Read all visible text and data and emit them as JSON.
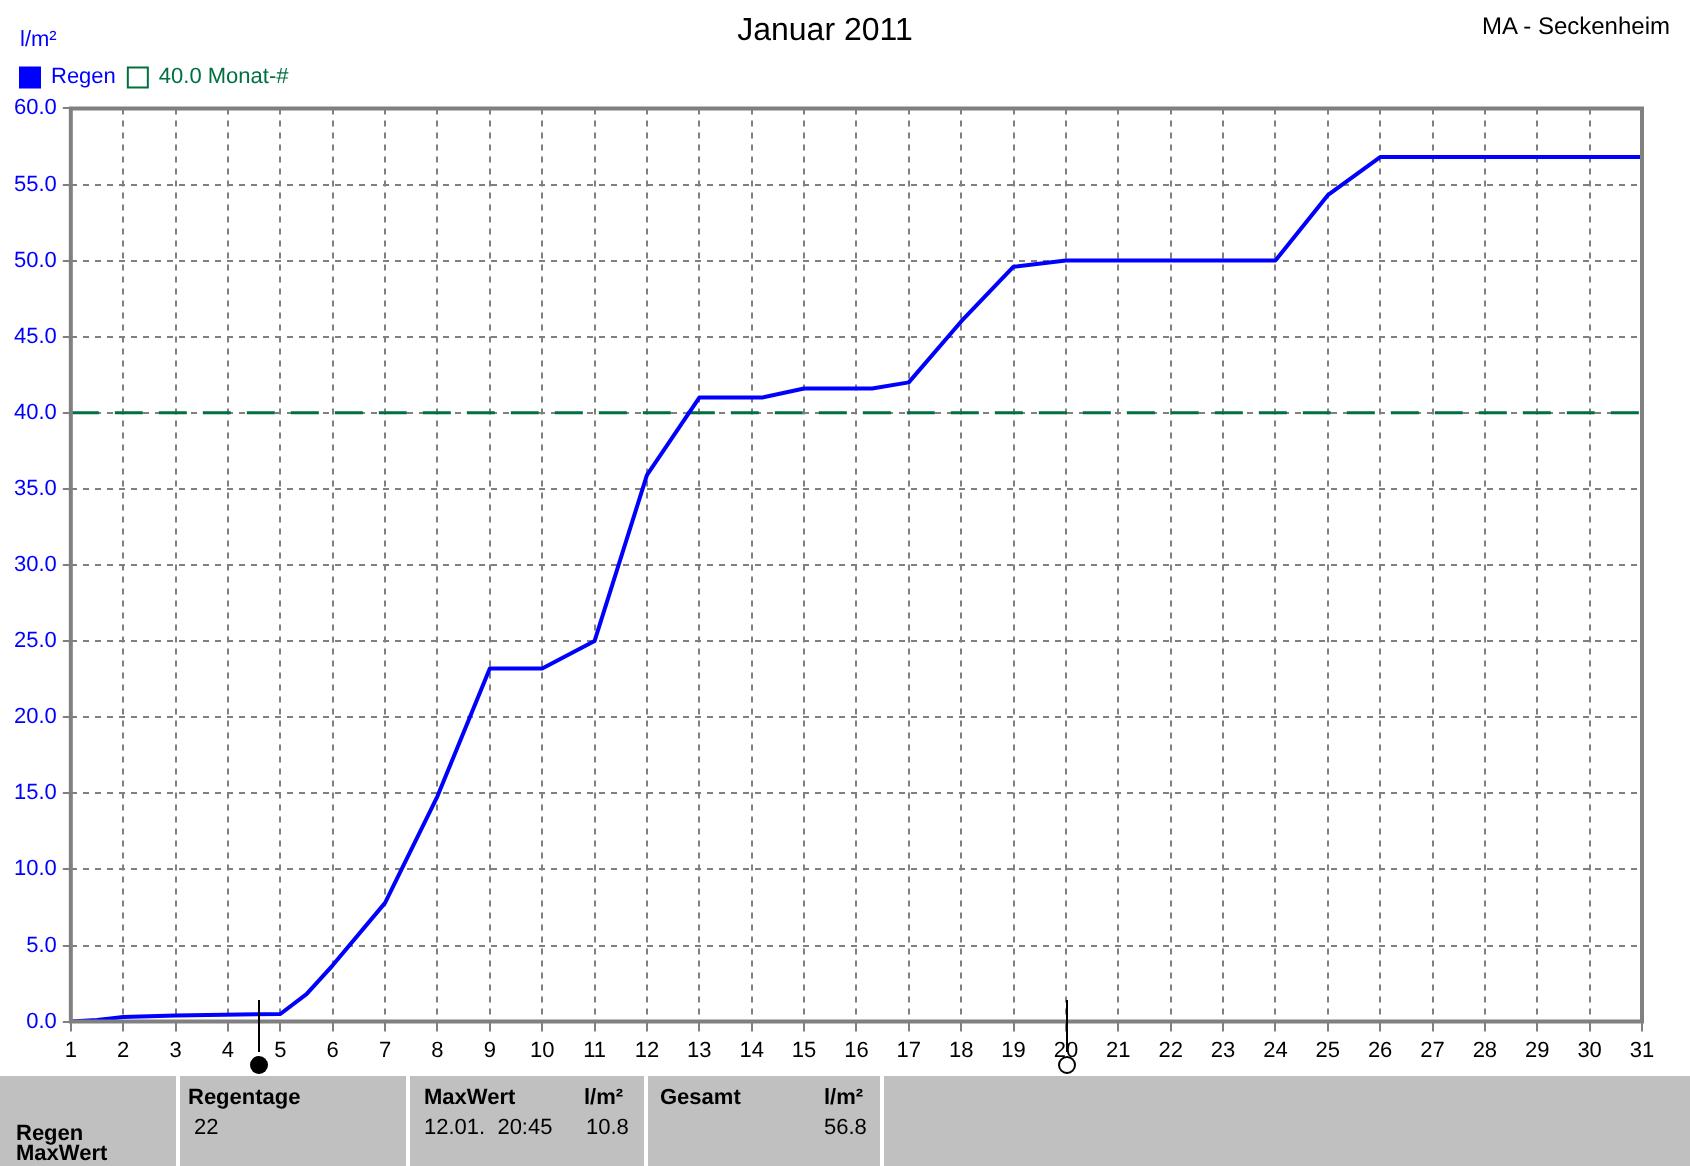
{
  "chart_data": {
    "type": "line",
    "title": "Januar 2011",
    "subtitle": "MA - Seckenheim",
    "ylabel": "l/m²",
    "x": [
      1,
      1.5,
      2,
      3,
      5,
      5.5,
      6,
      7,
      8,
      9,
      10,
      11,
      12,
      13,
      14.2,
      15,
      16.3,
      17,
      18,
      19,
      20,
      24,
      25,
      26,
      31
    ],
    "series": [
      {
        "name": "Regen",
        "color": "#0000ff",
        "values": [
          0,
          0.1,
          0.3,
          0.4,
          0.5,
          1.8,
          3.7,
          7.8,
          14.8,
          23.2,
          23.2,
          25,
          35.9,
          41,
          41,
          41.6,
          41.6,
          42,
          46,
          49.6,
          50,
          50,
          54.3,
          56.8,
          56.8
        ]
      }
    ],
    "xlim": [
      1,
      31
    ],
    "xticks": [
      1,
      2,
      3,
      4,
      5,
      6,
      7,
      8,
      9,
      10,
      11,
      12,
      13,
      14,
      15,
      16,
      17,
      18,
      19,
      20,
      21,
      22,
      23,
      24,
      25,
      26,
      27,
      28,
      29,
      30,
      31
    ],
    "ylim": [
      0,
      60
    ],
    "yticks": [
      {
        "value": 0,
        "label": "0.0"
      },
      {
        "value": 5,
        "label": "5.0"
      },
      {
        "value": 10,
        "label": "10.0"
      },
      {
        "value": 15,
        "label": "15.0"
      },
      {
        "value": 20,
        "label": "20.0"
      },
      {
        "value": 25,
        "label": "25.0"
      },
      {
        "value": 30,
        "label": "30.0"
      },
      {
        "value": 35,
        "label": "35.0"
      },
      {
        "value": 40,
        "label": "40.0"
      },
      {
        "value": 45,
        "label": "45.0"
      },
      {
        "value": 50,
        "label": "50.0"
      },
      {
        "value": 55,
        "label": "55.0"
      },
      {
        "value": 60,
        "label": "60.0"
      }
    ],
    "ref_lines": [
      {
        "axis": "y",
        "value": 40,
        "label": "40.0 Monat-#",
        "color": "#007040",
        "line_style": "dashed"
      }
    ],
    "grid": true,
    "legend": "top left",
    "marker": "none",
    "line_style": "solid",
    "annotations": [
      "Regentage",
      "22",
      "MaxWert",
      "l/m²",
      "12.01.  20:45",
      "10.8",
      "Gesamt",
      "l/m²",
      "56.8",
      "Regen",
      "MaxWert"
    ]
  }
}
